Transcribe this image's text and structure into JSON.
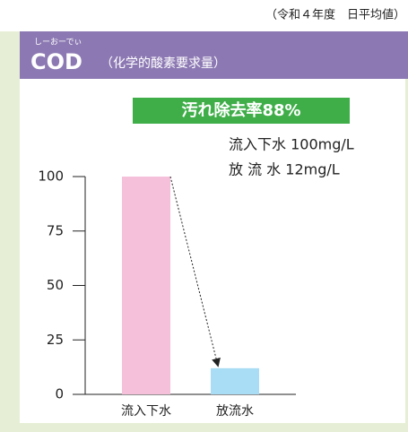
{
  "chart_data": {
    "type": "bar",
    "note": "（令和４年度　日平均値）",
    "ruby": "しーおーでぃ",
    "title": "COD",
    "subtitle": "（化学的酸素要求量）",
    "banner": "汚れ除去率88%",
    "annotations": [
      "流入下水 100mg/L",
      "放 流 水 12mg/L"
    ],
    "categories": [
      "流入下水",
      "放流水"
    ],
    "values": [
      100,
      12
    ],
    "colors": [
      "#f5c0da",
      "#a9dcf5"
    ],
    "ylim": [
      0,
      100
    ],
    "yticks": [
      0,
      25,
      50,
      75,
      100
    ],
    "grid": false
  }
}
